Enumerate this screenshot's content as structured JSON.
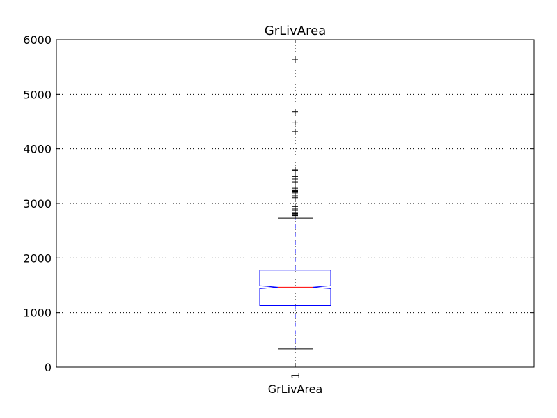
{
  "chart_data": {
    "type": "box",
    "title": "GrLivArea",
    "xlabel": "GrLivArea",
    "ylabel": "",
    "ylim": [
      0,
      6000
    ],
    "yticks": [
      0,
      1000,
      2000,
      3000,
      4000,
      5000,
      6000
    ],
    "xtick_labels": [
      "1"
    ],
    "grid": true,
    "notched": true,
    "series": [
      {
        "whisker_low": 334,
        "q1": 1130,
        "median": 1464,
        "q3": 1777,
        "whisker_high": 2730,
        "notch_low": 1437,
        "notch_high": 1491,
        "outliers": [
          5642,
          4676,
          4476,
          4316,
          3627,
          3608,
          3493,
          3447,
          3395,
          3279,
          3238,
          3228,
          3222,
          3194,
          3140,
          3112,
          3086,
          2945,
          2898,
          2872,
          2822,
          2810,
          2794,
          2784,
          2775
        ]
      }
    ]
  },
  "colors": {
    "box": "#0000ff",
    "median": "#ff0000",
    "whisker": "#0000ff",
    "cap": "#000000",
    "outlier": "#000000",
    "grid": "#000000",
    "axes": "#000000"
  }
}
